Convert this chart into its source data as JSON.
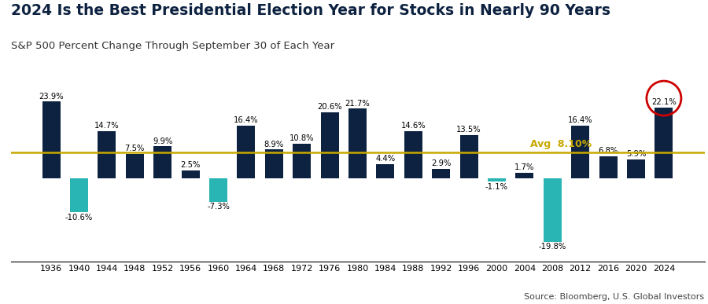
{
  "title": "2024 Is the Best Presidential Election Year for Stocks in Nearly 90 Years",
  "subtitle": "S&P 500 Percent Change Through September 30 of Each Year",
  "source": "Source: Bloomberg, U.S. Global Investors",
  "avg_label": "Avg  8.10%",
  "avg_value": 8.1,
  "years": [
    1936,
    1940,
    1944,
    1948,
    1952,
    1956,
    1960,
    1964,
    1968,
    1972,
    1976,
    1980,
    1984,
    1988,
    1992,
    1996,
    2000,
    2004,
    2008,
    2012,
    2016,
    2020,
    2024
  ],
  "values": [
    23.9,
    -10.6,
    14.7,
    7.5,
    9.9,
    2.5,
    -7.3,
    16.4,
    8.9,
    10.8,
    20.6,
    21.7,
    4.4,
    14.6,
    2.9,
    13.5,
    -1.1,
    1.7,
    -19.8,
    16.4,
    6.8,
    5.9,
    22.1
  ],
  "negative_years": [
    1940,
    1960,
    2000,
    2008
  ],
  "highlight_year": 2024,
  "bar_color_positive": "#0d2240",
  "bar_color_negative": "#2ab5b5",
  "avg_line_color": "#c8a800",
  "highlight_circle_color": "#cc0000",
  "title_fontsize": 13.5,
  "subtitle_fontsize": 9.5,
  "label_fontsize": 7.2,
  "avg_fontsize": 9,
  "source_fontsize": 8,
  "tick_fontsize": 8,
  "background_color": "#ffffff"
}
